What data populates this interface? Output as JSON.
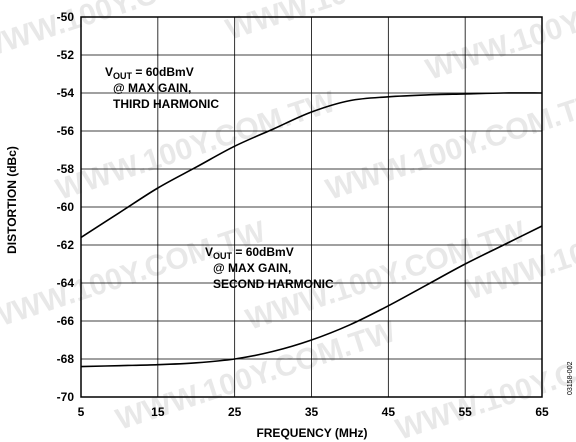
{
  "chart_data": {
    "type": "line",
    "title": "",
    "xlabel": "FREQUENCY (MHz)",
    "ylabel": "DISTORTION (dBc)",
    "xlim": [
      5,
      65
    ],
    "ylim": [
      -70,
      -50
    ],
    "xticks": [
      5,
      15,
      25,
      35,
      45,
      55,
      65
    ],
    "yticks": [
      -50,
      -52,
      -54,
      -56,
      -58,
      -60,
      -62,
      -64,
      -66,
      -68,
      -70
    ],
    "grid": true,
    "series": [
      {
        "x": [
          5,
          10,
          15,
          20,
          25,
          30,
          35,
          40,
          45,
          50,
          55,
          60,
          65
        ],
        "y": [
          -61.6,
          -60.3,
          -59.0,
          -57.9,
          -56.8,
          -55.9,
          -55.0,
          -54.4,
          -54.2,
          -54.1,
          -54.05,
          -54.0,
          -54.0
        ]
      },
      {
        "x": [
          5,
          10,
          15,
          20,
          25,
          30,
          35,
          40,
          45,
          50,
          55,
          60,
          65
        ],
        "y": [
          -68.4,
          -68.35,
          -68.3,
          -68.2,
          -68.0,
          -67.6,
          -67.0,
          -66.2,
          -65.2,
          -64.1,
          -63.0,
          -62.0,
          -61.0
        ]
      }
    ],
    "annotations": [
      {
        "lines": [
          "V",
          "OUT",
          " = 60dBmV",
          "@ MAX GAIN,",
          "THIRD HARMONIC"
        ]
      },
      {
        "lines": [
          "V",
          "OUT",
          " = 60dBmV",
          "@ MAX GAIN,",
          "SECOND HARMONIC"
        ]
      }
    ],
    "figure_id": "03158-002",
    "watermark": "WWW.100Y.COM.TW"
  }
}
